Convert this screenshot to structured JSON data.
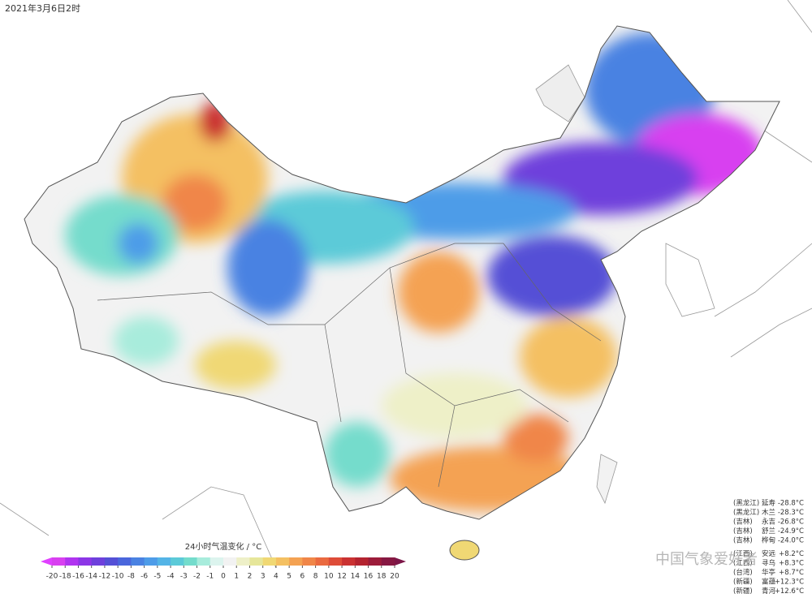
{
  "title": "2021年3月6日2时",
  "colorbar": {
    "label": "24小时气温变化 / °C",
    "ticks": [
      -20,
      -18,
      -16,
      -14,
      -12,
      -10,
      -8,
      -6,
      -5,
      -4,
      -3,
      -2,
      -1,
      0,
      1,
      2,
      3,
      4,
      5,
      6,
      8,
      10,
      12,
      14,
      16,
      18,
      20
    ],
    "colors": [
      "#d840f0",
      "#b034f0",
      "#8c36e6",
      "#6e40dc",
      "#5450d6",
      "#4a66dc",
      "#4a82e2",
      "#4e9ce8",
      "#54b4e6",
      "#5ccad8",
      "#74dccc",
      "#a8ecdc",
      "#dcf4ee",
      "#f2f2f2",
      "#eef0c8",
      "#e6e69a",
      "#f0d874",
      "#f4c062",
      "#f4a252",
      "#f08648",
      "#ea6a40",
      "#de4c38",
      "#ca3232",
      "#b42430",
      "#9c1c3a",
      "#861842"
    ],
    "under_color": "#e040ff",
    "over_color": "#7c1648"
  },
  "stations_min": [
    {
      "province": "(黑龙江)",
      "station": "延寿",
      "value": "-28.8°C"
    },
    {
      "province": "(黑龙江)",
      "station": "木兰",
      "value": "-28.3°C"
    },
    {
      "province": "(吉林)",
      "station": "永吉",
      "value": "-26.8°C"
    },
    {
      "province": "(吉林)",
      "station": "舒兰",
      "value": "-24.9°C"
    },
    {
      "province": "(吉林)",
      "station": "桦甸",
      "value": "-24.0°C"
    }
  ],
  "stations_max": [
    {
      "province": "(江西)",
      "station": "安远",
      "value": "+8.2°C"
    },
    {
      "province": "(江西)",
      "station": "寻乌",
      "value": "+8.3°C"
    },
    {
      "province": "(台湾)",
      "station": "华亭",
      "value": "+8.7°C"
    },
    {
      "province": "(新疆)",
      "station": "富蕴",
      "value": "+12.3°C"
    },
    {
      "province": "(新疆)",
      "station": "青河",
      "value": "+12.6°C"
    }
  ],
  "watermark": "中国气象爱好者"
}
